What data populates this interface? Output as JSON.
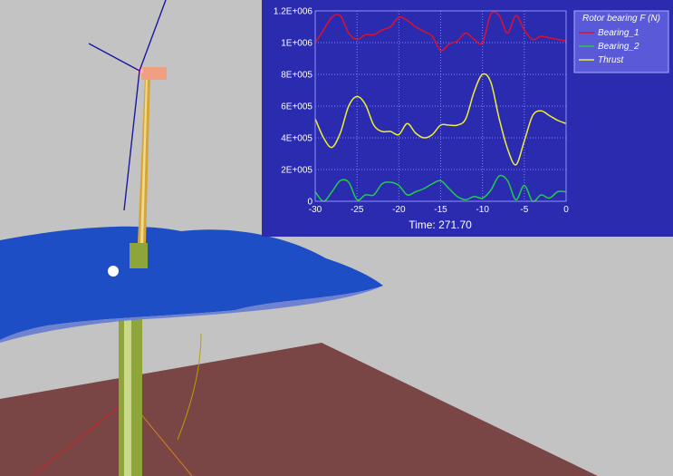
{
  "scene": {
    "background_color": "#c3c3c3",
    "floor_color": "#7a4545",
    "water_color": "#1f4fc8",
    "tower_color": "#9fb04a",
    "nacelle_color": "#f0a080",
    "blade_color": "#1a1aa0"
  },
  "chart_panel": {
    "background": "#2b2bb0",
    "legend_background": "#5a5ad8",
    "time_label": "Time: 271.70"
  },
  "chart_data": {
    "type": "line",
    "legend_title": "Rotor bearing F (N)",
    "xlim": [
      -30,
      0
    ],
    "ylim": [
      0,
      1200000
    ],
    "x_ticks": [
      "-30",
      "-25",
      "-20",
      "-15",
      "-10",
      "-5",
      "0"
    ],
    "y_ticks": [
      "0",
      "2E+005",
      "4E+005",
      "6E+005",
      "8E+005",
      "1E+006",
      "1.2E+006"
    ],
    "grid": true,
    "legend_position": "top-right",
    "x": [
      -30,
      -29,
      -28,
      -27,
      -26,
      -25,
      -24,
      -23,
      -22,
      -21,
      -20,
      -19,
      -18,
      -17,
      -16,
      -15,
      -14,
      -13,
      -12,
      -11,
      -10,
      -9,
      -8,
      -7,
      -6,
      -5,
      -4,
      -3,
      -2,
      -1,
      0
    ],
    "series": [
      {
        "name": "Bearing_1",
        "color": "#e0102a",
        "values": [
          1000000,
          1080000,
          1160000,
          1170000,
          1060000,
          1020000,
          1050000,
          1050000,
          1080000,
          1100000,
          1160000,
          1140000,
          1100000,
          1070000,
          1040000,
          950000,
          990000,
          1010000,
          1060000,
          1020000,
          1000000,
          1180000,
          1170000,
          1060000,
          1170000,
          1080000,
          1020000,
          1040000,
          1030000,
          1020000,
          1010000
        ]
      },
      {
        "name": "Bearing_2",
        "color": "#22cc44",
        "values": [
          60000,
          0,
          60000,
          130000,
          120000,
          10000,
          40000,
          40000,
          110000,
          120000,
          100000,
          40000,
          60000,
          80000,
          110000,
          130000,
          80000,
          30000,
          10000,
          30000,
          20000,
          70000,
          160000,
          130000,
          10000,
          100000,
          0,
          40000,
          20000,
          60000,
          60000
        ]
      },
      {
        "name": "Thrust",
        "color": "#eeee33",
        "values": [
          520000,
          400000,
          340000,
          430000,
          600000,
          660000,
          610000,
          480000,
          440000,
          440000,
          420000,
          490000,
          430000,
          400000,
          420000,
          480000,
          480000,
          480000,
          520000,
          690000,
          800000,
          750000,
          520000,
          330000,
          230000,
          380000,
          540000,
          570000,
          540000,
          510000,
          490000
        ]
      }
    ]
  }
}
